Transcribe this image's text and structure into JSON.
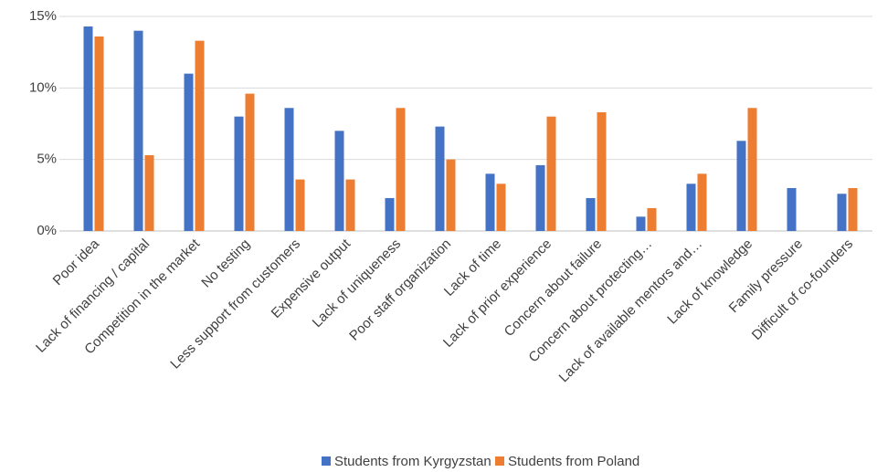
{
  "chart_data": {
    "type": "bar",
    "categories": [
      "Poor idea",
      "Lack of financing / capital",
      "Competition in the market",
      "No testing",
      "Less support from customers",
      "Expensive output",
      "Lack of uniqueness",
      "Poor staff organization",
      "Lack of time",
      "Lack of prior experience",
      "Concern about failure",
      "Concern about protecting…",
      "Lack of available mentors and…",
      "Lack of knowledge",
      "Family pressure",
      "Difficult of co-founders"
    ],
    "series": [
      {
        "name": "Students from Kyrgyzstan",
        "color": "#4472c4",
        "values": [
          14.3,
          14.0,
          11.0,
          8.0,
          8.6,
          7.0,
          2.3,
          7.3,
          4.0,
          4.6,
          2.3,
          1.0,
          3.3,
          6.3,
          3.0,
          2.6
        ]
      },
      {
        "name": "Students from Poland",
        "color": "#ed7d31",
        "values": [
          13.6,
          5.3,
          13.3,
          9.6,
          3.6,
          3.6,
          8.6,
          5.0,
          3.3,
          8.0,
          8.3,
          1.6,
          4.0,
          8.6,
          0,
          3.0
        ]
      }
    ],
    "ylim": [
      0,
      15
    ],
    "yticks": [
      {
        "value": 0,
        "label": "0%"
      },
      {
        "value": 5,
        "label": "5%"
      },
      {
        "value": 10,
        "label": "10%"
      },
      {
        "value": 15,
        "label": "15%"
      }
    ],
    "grid": true,
    "legend": "bottom"
  }
}
